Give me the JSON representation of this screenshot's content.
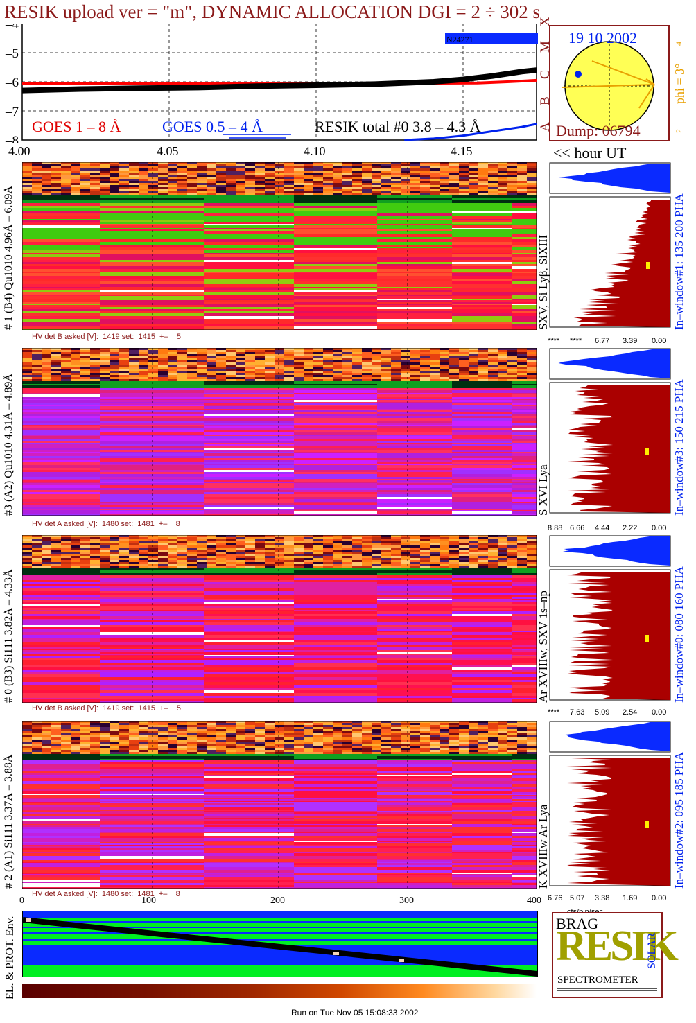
{
  "header": {
    "title": "RESIK upload ver = \"m\", DYNAMIC ALLOCATION  DGI =   2 ÷ 302 s"
  },
  "goes_panel": {
    "legend": {
      "goes_long": "GOES 1 – 8 Å",
      "goes_short": "GOES 0.5 – 4 Å",
      "resik_total": "RESIK total #0  3.8 – 4.3 Å"
    },
    "flare_classes": [
      "A",
      "B",
      "C",
      "M",
      "X"
    ],
    "noaa_region": "N24271",
    "colors": {
      "goes_long": "#ff0000",
      "goes_short": "#0022ee",
      "resik": "#000000"
    }
  },
  "sun_panel": {
    "date": "19 10 2002",
    "dump": "Dump: 06794",
    "phi_label": "phi =   3°",
    "tick_left": "2",
    "tick_right": "4"
  },
  "time_axis": {
    "ticks": [
      "4.00",
      "4.05",
      "4.10",
      "4.15"
    ],
    "unit_label": "<< hour UT"
  },
  "channels": [
    {
      "side_label": "# 1 (B4) Qu1010 4.96Å – 6.09Å",
      "line_label": "SXV, Si Lyβ, SiXIII",
      "window_label": "In–window#1:  135 200 PHA",
      "hv_line": "HV det B asked [V]:  1419 set:  1415  +–    5",
      "scale_ticks": [
        "****",
        "****",
        "6.77",
        "3.39",
        "0.00"
      ]
    },
    {
      "side_label": "#3 (A2) Qu1010  4.31Å – 4.89Å",
      "line_label": "S XVI Lya",
      "window_label": "In–window#3:  150 215 PHA",
      "hv_line": "HV det A asked [V]:  1480 set:  1481  +–    8",
      "scale_ticks": [
        "8.88",
        "6.66",
        "4.44",
        "2.22",
        "0.00"
      ]
    },
    {
      "side_label": "# 0 (B3) Si111  3.82Å – 4.33Å",
      "line_label": "Ar XVIIIw, SXV 1s–np",
      "window_label": "In–window#0:  080 160 PHA",
      "hv_line": "HV det B asked [V]:  1419 set:  1415  +–    5",
      "scale_ticks": [
        "****",
        "7.63",
        "5.09",
        "2.54",
        "0.00"
      ]
    },
    {
      "side_label": "# 2 (A1) Si111  3.37Å – 3.88Å",
      "line_label": "K XVIIIw  Ar Lya",
      "window_label": "In–window#2:  095 185 PHA",
      "hv_line": "HV det A asked [V]:  1480 set:  1481  +–    8",
      "scale_ticks": [
        "6.76",
        "5.07",
        "3.38",
        "1.69",
        "0.00"
      ]
    }
  ],
  "pha_axis": {
    "ticks": [
      "0",
      "100",
      "200",
      "300",
      "400"
    ],
    "unit_label": "cts/bin/sec"
  },
  "env_panel": {
    "label": "EL. & PROT. Env."
  },
  "logo": {
    "word": "RESIK",
    "sub": "SPECTROMETER",
    "side": "SOLAR",
    "corner": "BRAG"
  },
  "footer": {
    "run_text": "Run on Tue Nov 05 15:08:33 2002"
  },
  "chart_data": {
    "type": "line",
    "y_ticks": [
      "–4",
      "–5",
      "–6",
      "–7",
      "–8"
    ],
    "ylim": [
      -8,
      -4
    ],
    "xlim": [
      4.0,
      4.175
    ],
    "x_ticks": [
      4.0,
      4.05,
      4.1,
      4.15
    ],
    "grid": true,
    "series": [
      {
        "name": "GOES 1 – 8 Å",
        "x": [
          4.0,
          4.03,
          4.06,
          4.09,
          4.12,
          4.14,
          4.155,
          4.165,
          4.175
        ],
        "y": [
          -6.05,
          -6.06,
          -6.07,
          -6.07,
          -6.06,
          -6.05,
          -6.04,
          -6.0,
          -5.95
        ]
      },
      {
        "name": "GOES 0.5 – 4 Å",
        "x": [
          4.13,
          4.14,
          4.15,
          4.16,
          4.17,
          4.175
        ],
        "y": [
          -8.0,
          -7.95,
          -7.85,
          -7.7,
          -7.55,
          -7.45
        ]
      },
      {
        "name": "RESIK total #0  3.8 – 4.3 Å",
        "x": [
          4.0,
          4.02,
          4.04,
          4.06,
          4.08,
          4.1,
          4.12,
          4.14,
          4.15,
          4.16,
          4.17,
          4.175
        ],
        "y": [
          -6.3,
          -6.25,
          -6.22,
          -6.2,
          -6.15,
          -6.12,
          -6.08,
          -6.0,
          -5.92,
          -5.8,
          -5.65,
          -5.6
        ]
      }
    ]
  }
}
